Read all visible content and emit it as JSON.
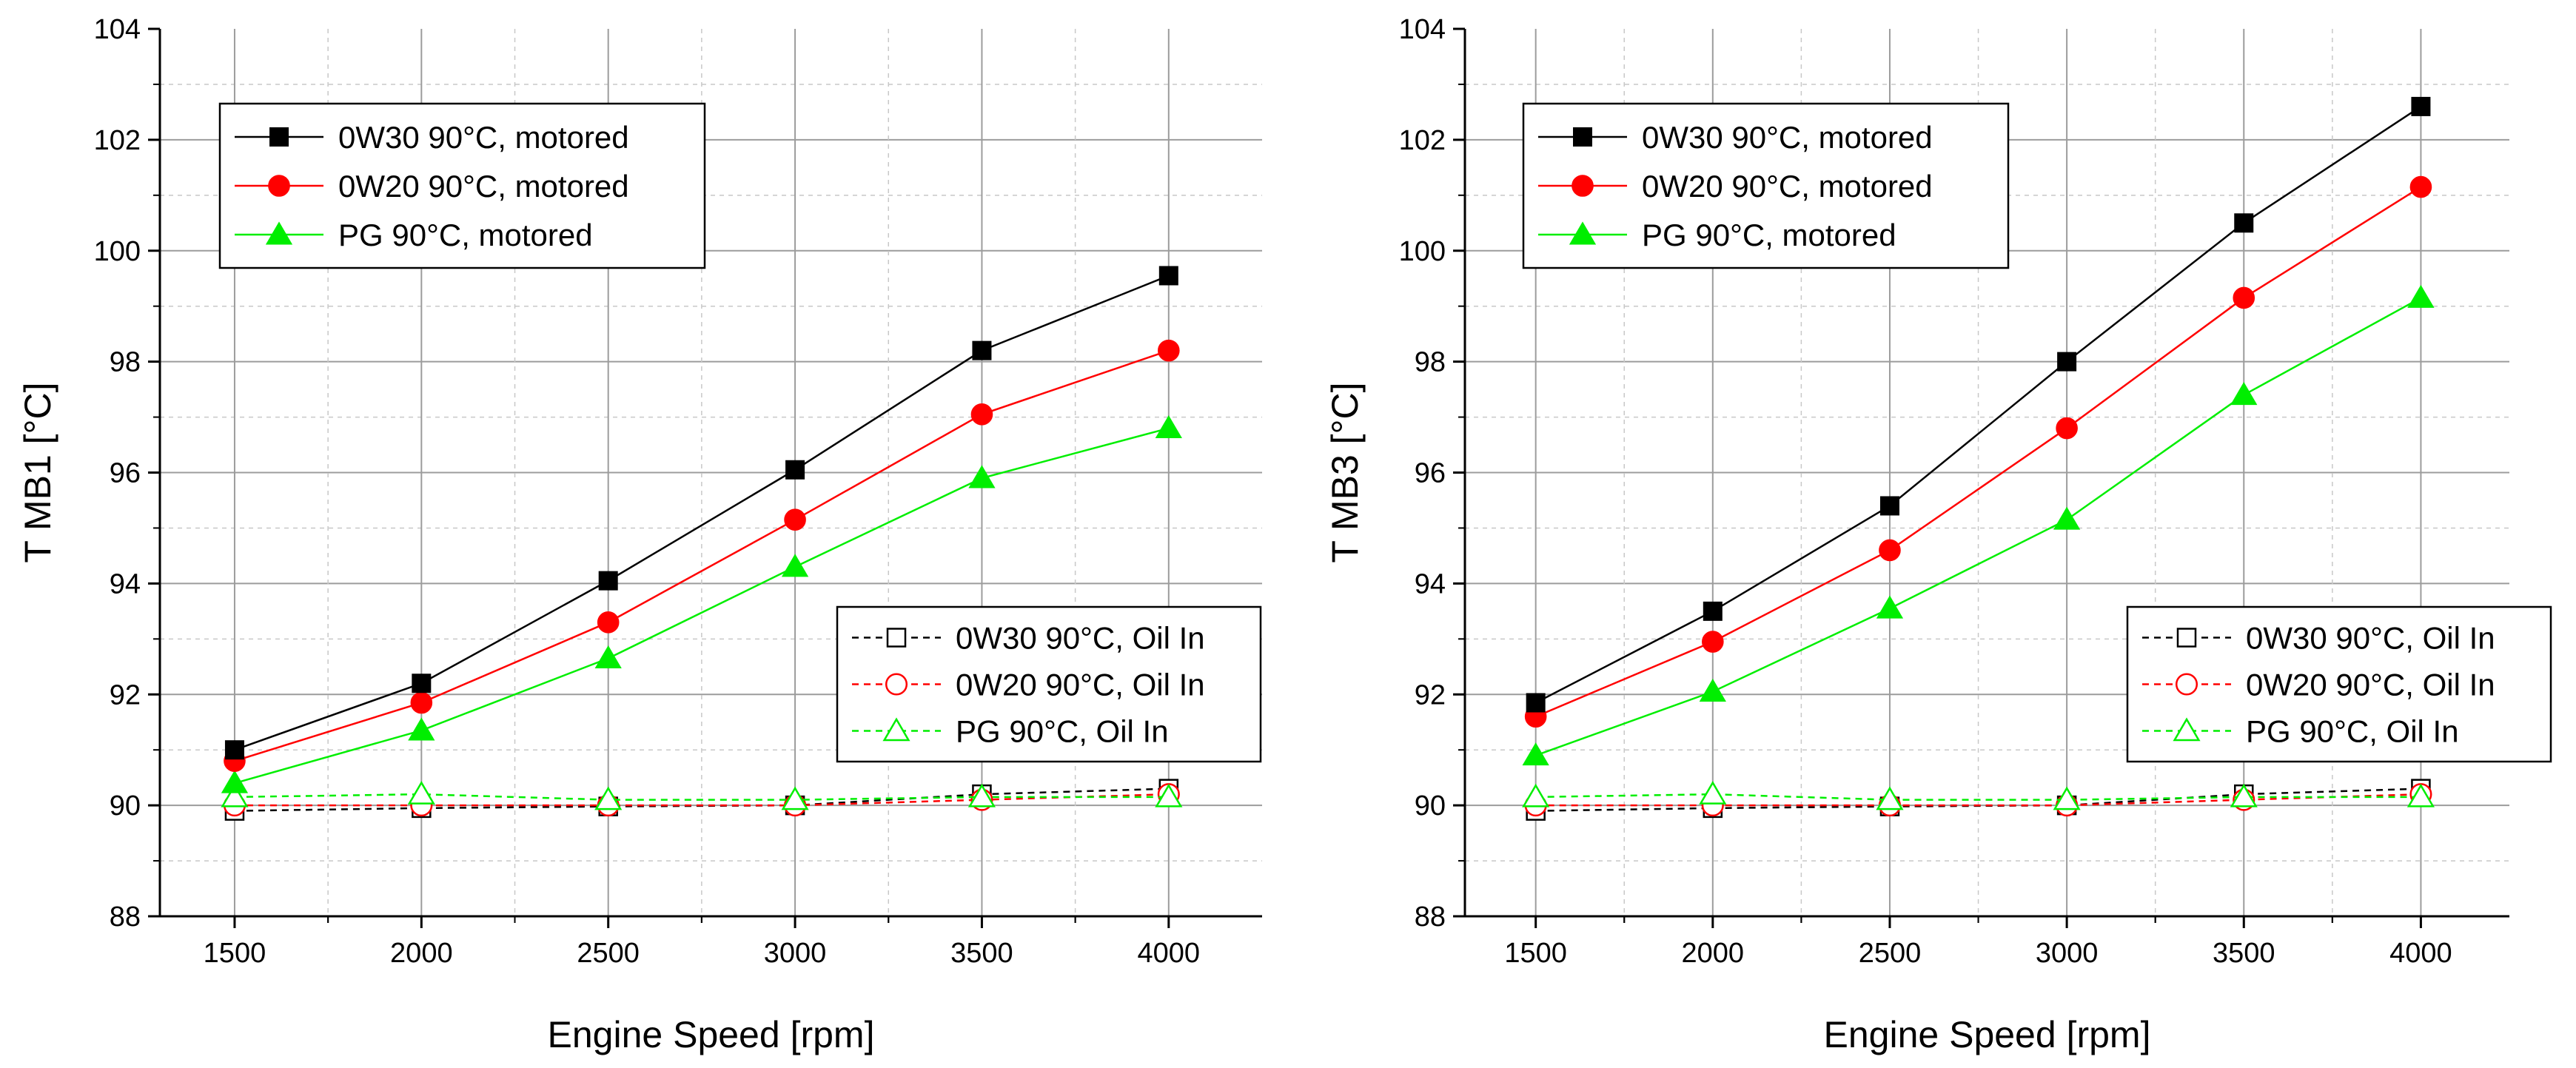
{
  "chart_data": [
    {
      "type": "line",
      "title": "",
      "xlabel": "Engine Speed [rpm]",
      "ylabel": "T MB1 [°C]",
      "x": [
        1500,
        2000,
        2500,
        3000,
        3500,
        4000
      ],
      "xlim": [
        1300,
        4250
      ],
      "ylim": [
        88,
        104
      ],
      "xticks": [
        1500,
        2000,
        2500,
        3000,
        3500,
        4000
      ],
      "yticks": [
        88,
        90,
        92,
        94,
        96,
        98,
        100,
        102,
        104
      ],
      "grid": true,
      "legends": [
        {
          "placement": "top-left",
          "series": [
            0,
            1,
            2
          ]
        },
        {
          "placement": "middle-right",
          "series": [
            3,
            4,
            5
          ]
        }
      ],
      "series": [
        {
          "name": "0W30 90°C, motored",
          "color": "#000000",
          "marker": "square",
          "filled": true,
          "dash": false,
          "values": [
            91.0,
            92.2,
            94.05,
            96.05,
            98.2,
            99.55
          ]
        },
        {
          "name": "0W20 90°C, motored",
          "color": "#ff0000",
          "marker": "circle",
          "filled": true,
          "dash": false,
          "values": [
            90.8,
            91.85,
            93.3,
            95.15,
            97.05,
            98.2
          ]
        },
        {
          "name": "PG 90°C, motored",
          "color": "#00ee00",
          "marker": "triangle",
          "filled": true,
          "dash": false,
          "values": [
            90.4,
            91.35,
            92.65,
            94.3,
            95.9,
            96.8
          ]
        },
        {
          "name": "0W30 90°C, Oil In",
          "color": "#000000",
          "marker": "square",
          "filled": false,
          "dash": true,
          "values": [
            89.9,
            89.95,
            89.98,
            90.0,
            90.2,
            90.3
          ]
        },
        {
          "name": "0W20 90°C, Oil In",
          "color": "#ff0000",
          "marker": "circle",
          "filled": false,
          "dash": true,
          "values": [
            90.0,
            90.0,
            90.0,
            90.0,
            90.1,
            90.2
          ]
        },
        {
          "name": "PG 90°C, Oil In",
          "color": "#00ee00",
          "marker": "triangle",
          "filled": false,
          "dash": true,
          "values": [
            90.15,
            90.2,
            90.1,
            90.1,
            90.15,
            90.15
          ]
        }
      ]
    },
    {
      "type": "line",
      "title": "",
      "xlabel": "Engine Speed [rpm]",
      "ylabel": "T MB3 [°C]",
      "x": [
        1500,
        2000,
        2500,
        3000,
        3500,
        4000
      ],
      "xlim": [
        1300,
        4250
      ],
      "ylim": [
        88,
        104
      ],
      "xticks": [
        1500,
        2000,
        2500,
        3000,
        3500,
        4000
      ],
      "yticks": [
        88,
        90,
        92,
        94,
        96,
        98,
        100,
        102,
        104
      ],
      "grid": true,
      "legends": [
        {
          "placement": "top-left",
          "series": [
            0,
            1,
            2
          ]
        },
        {
          "placement": "middle-right",
          "series": [
            3,
            4,
            5
          ]
        }
      ],
      "series": [
        {
          "name": "0W30 90°C, motored",
          "color": "#000000",
          "marker": "square",
          "filled": true,
          "dash": false,
          "values": [
            91.85,
            93.5,
            95.4,
            98.0,
            100.5,
            102.6
          ]
        },
        {
          "name": "0W20 90°C, motored",
          "color": "#ff0000",
          "marker": "circle",
          "filled": true,
          "dash": false,
          "values": [
            91.6,
            92.95,
            94.6,
            96.8,
            99.15,
            101.15
          ]
        },
        {
          "name": "PG 90°C, motored",
          "color": "#00ee00",
          "marker": "triangle",
          "filled": true,
          "dash": false,
          "values": [
            90.9,
            92.05,
            93.55,
            95.15,
            97.4,
            99.15
          ]
        },
        {
          "name": "0W30 90°C, Oil In",
          "color": "#000000",
          "marker": "square",
          "filled": false,
          "dash": true,
          "values": [
            89.9,
            89.95,
            89.98,
            90.0,
            90.2,
            90.3
          ]
        },
        {
          "name": "0W20 90°C, Oil In",
          "color": "#ff0000",
          "marker": "circle",
          "filled": false,
          "dash": true,
          "values": [
            90.0,
            90.0,
            90.0,
            90.0,
            90.1,
            90.2
          ]
        },
        {
          "name": "PG 90°C, Oil In",
          "color": "#00ee00",
          "marker": "triangle",
          "filled": false,
          "dash": true,
          "values": [
            90.15,
            90.2,
            90.1,
            90.1,
            90.15,
            90.15
          ]
        }
      ]
    }
  ]
}
